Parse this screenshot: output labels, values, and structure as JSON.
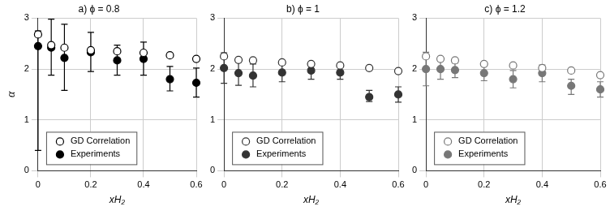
{
  "chart_data": [
    {
      "type": "scatter",
      "title": "a) ϕ = 0.8",
      "x_label": "xH₂",
      "y_label": "α",
      "x": [
        0,
        0.05,
        0.1,
        0.2,
        0.3,
        0.4,
        0.5,
        0.6
      ],
      "series": [
        {
          "name": "GD Correlation",
          "color": "#000000",
          "marker": "circle_open",
          "values": [
            2.68,
            2.47,
            2.42,
            2.37,
            2.35,
            2.32,
            2.27,
            2.2
          ]
        },
        {
          "name": "Experiments",
          "color": "#000000",
          "marker": "circle",
          "values": [
            2.45,
            2.42,
            2.22,
            2.33,
            2.17,
            2.2,
            1.8,
            1.73
          ],
          "error_low": [
            0.4,
            1.88,
            1.58,
            1.95,
            1.88,
            1.88,
            1.57,
            1.45
          ],
          "error_high": [
            2.75,
            2.98,
            2.88,
            2.72,
            2.47,
            2.53,
            2.05,
            2.02
          ]
        }
      ],
      "xlim": [
        0,
        0.6
      ],
      "ylim": [
        0,
        3
      ],
      "xticks": [
        0,
        0.2,
        0.4,
        0.6
      ],
      "yticks": [
        0,
        1,
        2,
        3
      ],
      "grid": true,
      "legend": "lower left"
    },
    {
      "type": "scatter",
      "title": "b) ϕ = 1",
      "x_label": "xH₂",
      "x": [
        0,
        0.05,
        0.1,
        0.2,
        0.3,
        0.4,
        0.5,
        0.6
      ],
      "series": [
        {
          "name": "GD Correlation",
          "color": "#333333",
          "marker": "circle_open",
          "values": [
            2.25,
            2.18,
            2.17,
            2.13,
            2.1,
            2.07,
            2.02,
            1.96
          ]
        },
        {
          "name": "Experiments",
          "color": "#333333",
          "marker": "circle",
          "values": [
            2.02,
            1.92,
            1.87,
            1.93,
            1.97,
            1.93,
            1.45,
            1.5
          ],
          "error_low": [
            1.72,
            1.68,
            1.65,
            1.75,
            1.8,
            1.8,
            1.36,
            1.35
          ],
          "error_high": [
            2.32,
            2.15,
            2.1,
            2.1,
            2.12,
            2.05,
            1.58,
            1.65
          ]
        }
      ],
      "xlim": [
        0,
        0.6
      ],
      "ylim": [
        0,
        3
      ],
      "xticks": [
        0,
        0.2,
        0.4,
        0.6
      ],
      "yticks": [
        0,
        1,
        2,
        3
      ],
      "grid": true,
      "legend": "lower left"
    },
    {
      "type": "scatter",
      "title": "c) ϕ = 1.2",
      "x_label": "xH₂",
      "x": [
        0,
        0.05,
        0.1,
        0.2,
        0.3,
        0.4,
        0.5,
        0.6
      ],
      "series": [
        {
          "name": "GD Correlation",
          "color": "#777777",
          "marker": "circle_open",
          "values": [
            2.25,
            2.2,
            2.17,
            2.1,
            2.07,
            2.02,
            1.97,
            1.88
          ]
        },
        {
          "name": "Experiments",
          "color": "#777777",
          "marker": "circle",
          "values": [
            2.0,
            2.0,
            1.98,
            1.92,
            1.8,
            1.92,
            1.67,
            1.6
          ],
          "error_low": [
            1.67,
            1.8,
            1.83,
            1.77,
            1.63,
            1.75,
            1.5,
            1.45
          ],
          "error_high": [
            2.33,
            2.2,
            2.12,
            2.07,
            1.97,
            2.08,
            1.8,
            1.75
          ]
        }
      ],
      "xlim": [
        0,
        0.6
      ],
      "ylim": [
        0,
        3
      ],
      "xticks": [
        0,
        0.2,
        0.4,
        0.6
      ],
      "yticks": [
        0,
        1,
        2,
        3
      ],
      "grid": true,
      "legend": "lower left"
    }
  ]
}
